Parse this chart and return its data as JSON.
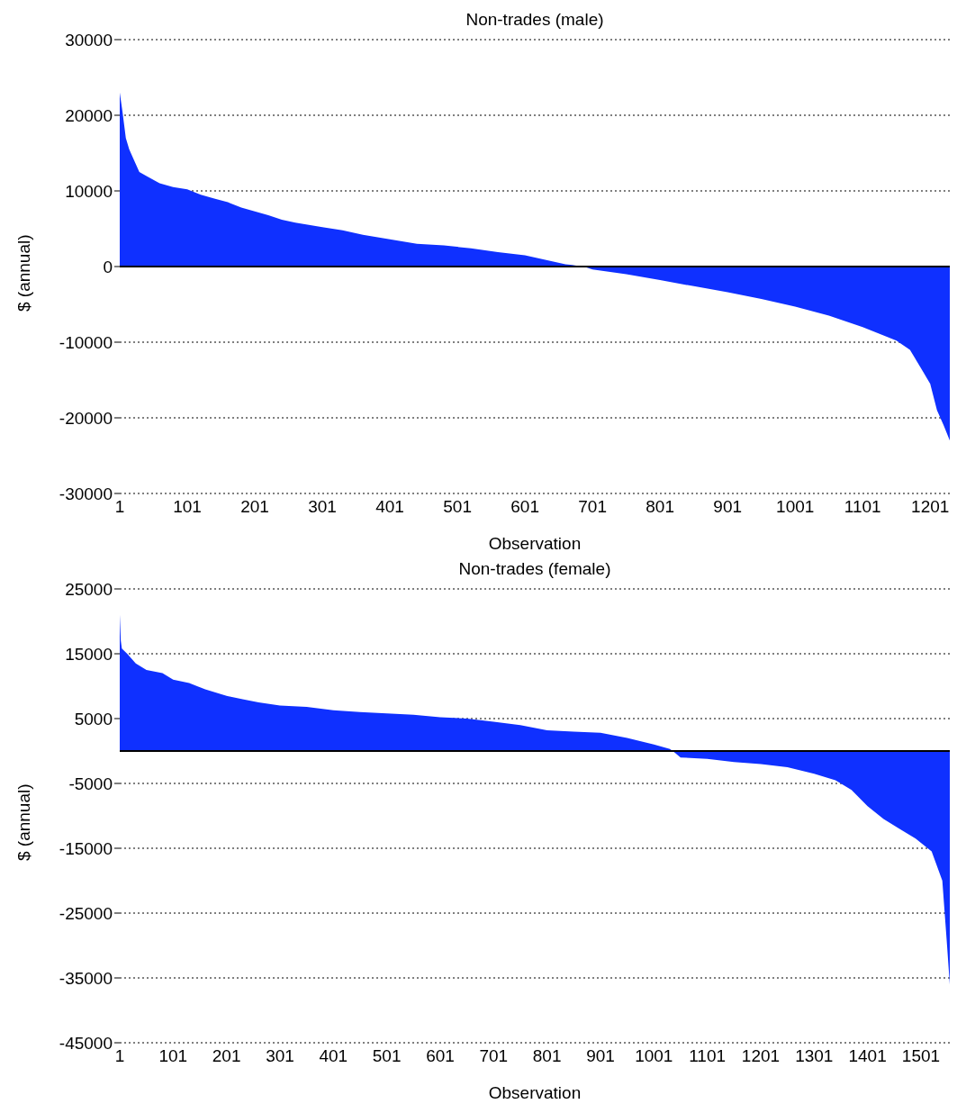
{
  "chart_data": [
    {
      "type": "area",
      "title": "Non-trades (male)",
      "xlabel": "Observation",
      "ylabel": "$ (annual)",
      "x": [
        1,
        5,
        10,
        15,
        20,
        30,
        40,
        60,
        80,
        101,
        121,
        141,
        161,
        181,
        201,
        221,
        241,
        261,
        281,
        301,
        331,
        361,
        401,
        441,
        481,
        521,
        561,
        601,
        631,
        661,
        671,
        691,
        701,
        751,
        801,
        851,
        901,
        951,
        1001,
        1051,
        1101,
        1151,
        1171,
        1181,
        1191,
        1201,
        1211,
        1221,
        1230
      ],
      "series": [
        {
          "color": "#0f30ff",
          "values": [
            23000,
            20500,
            17000,
            15500,
            14500,
            12500,
            12000,
            11000,
            10500,
            10200,
            9500,
            9000,
            8500,
            7800,
            7300,
            6800,
            6200,
            5800,
            5500,
            5200,
            4800,
            4200,
            3600,
            3000,
            2800,
            2400,
            1900,
            1500,
            900,
            300,
            200,
            -100,
            -400,
            -1000,
            -1800,
            -2600,
            -3400,
            -4300,
            -5300,
            -6500,
            -8000,
            -9800,
            -11000,
            -12500,
            -14000,
            -15500,
            -19000,
            -21000,
            -23000
          ]
        }
      ],
      "xlim": [
        1,
        1230
      ],
      "xticks": [
        1,
        101,
        201,
        301,
        401,
        501,
        601,
        701,
        801,
        901,
        1001,
        1101,
        1201
      ],
      "ylim": [
        -30000,
        30000
      ],
      "yticks": [
        -30000,
        -20000,
        -10000,
        0,
        10000,
        20000,
        30000
      ],
      "grid": "y",
      "ref_lines": [
        {
          "axis": "y",
          "value": 0,
          "color": "#000000"
        }
      ]
    },
    {
      "type": "area",
      "title": "Non-trades (female)",
      "xlabel": "Observation",
      "ylabel": "$ (annual)",
      "x": [
        1,
        3,
        5,
        15,
        31,
        51,
        81,
        101,
        131,
        161,
        201,
        231,
        261,
        301,
        351,
        401,
        451,
        501,
        551,
        601,
        651,
        701,
        751,
        801,
        851,
        901,
        951,
        1001,
        1031,
        1041,
        1051,
        1101,
        1151,
        1201,
        1251,
        1301,
        1341,
        1371,
        1401,
        1431,
        1461,
        1491,
        1521,
        1541,
        1549,
        1555
      ],
      "series": [
        {
          "color": "#0f30ff",
          "values": [
            21000,
            17000,
            15800,
            15000,
            13500,
            12500,
            12000,
            11000,
            10500,
            9500,
            8500,
            8000,
            7500,
            7000,
            6800,
            6300,
            6000,
            5800,
            5600,
            5200,
            5000,
            4500,
            4000,
            3200,
            3000,
            2800,
            2000,
            1000,
            300,
            -300,
            -1000,
            -1200,
            -1700,
            -2000,
            -2500,
            -3500,
            -4500,
            -6000,
            -8500,
            -10500,
            -12000,
            -13500,
            -15500,
            -20000,
            -29000,
            -36000
          ]
        }
      ],
      "xlim": [
        1,
        1555
      ],
      "xticks": [
        1,
        101,
        201,
        301,
        401,
        501,
        601,
        701,
        801,
        901,
        1001,
        1101,
        1201,
        1301,
        1401,
        1501
      ],
      "ylim": [
        -45000,
        25000
      ],
      "yticks": [
        -45000,
        -35000,
        -25000,
        -15000,
        -5000,
        5000,
        15000,
        25000
      ],
      "grid": "y",
      "ref_lines": [
        {
          "axis": "y",
          "value": 0,
          "color": "#000000"
        }
      ]
    }
  ]
}
